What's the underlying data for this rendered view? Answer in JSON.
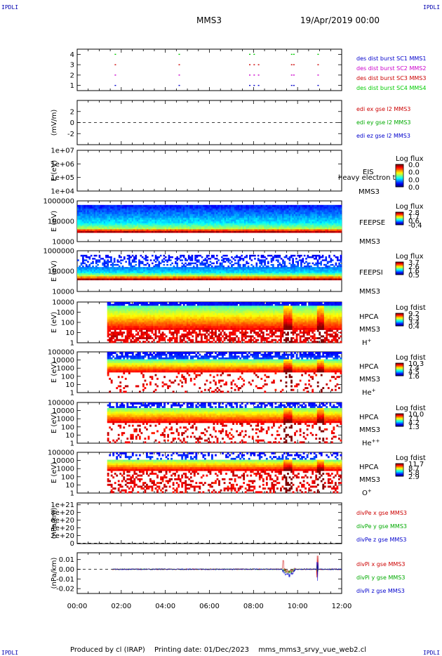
{
  "corner_label": "IPDLI",
  "header": {
    "spacecraft": "MMS3",
    "datetime": "19/Apr/2019 00:00"
  },
  "footer": {
    "produced_by": "Produced by cl (IRAP)",
    "printing_date": "Printing date: 01/Dec/2023",
    "filename": "mms_mms3_srvy_vue_web2.cl"
  },
  "chart_data": [
    {
      "type": "scatter",
      "panel": "burst_availability",
      "ylim": [
        0.5,
        4.5
      ],
      "yticks": [
        "1",
        "2",
        "3",
        "4"
      ],
      "series": [
        {
          "name": "des dist burst SC1 MMS1",
          "color": "#0000cc",
          "y": 1,
          "x_hours": [
            1.7,
            4.6,
            7.8,
            8.0,
            8.2,
            9.7,
            9.8,
            10.9
          ]
        },
        {
          "name": "des dist burst SC2 MMS2",
          "color": "#cc00cc",
          "y": 2,
          "x_hours": [
            1.7,
            4.6,
            7.8,
            8.0,
            8.2,
            9.7,
            9.8,
            10.9
          ]
        },
        {
          "name": "des dist burst SC3 MMS3",
          "color": "#cc0000",
          "y": 3,
          "x_hours": [
            1.7,
            4.6,
            7.8,
            8.0,
            8.2,
            9.7,
            9.8,
            10.9
          ]
        },
        {
          "name": "des dist burst SC4 MMS4",
          "color": "#00cc00",
          "y": 4,
          "x_hours": [
            1.7,
            4.6,
            7.8,
            8.0,
            9.7,
            9.8,
            10.9
          ]
        }
      ]
    },
    {
      "type": "line",
      "panel": "edi_efield",
      "ylabel": "(mV/m)",
      "ylim": [
        -4,
        4
      ],
      "yticks": [
        "-2",
        "0",
        "2"
      ],
      "series": [
        {
          "name": "edi ex gse l2 MMS3",
          "color": "#cc0000"
        },
        {
          "name": "edi ey gse l2 MMS3",
          "color": "#00aa00"
        },
        {
          "name": "edi ez gse l2 MMS3",
          "color": "#0000cc"
        }
      ]
    },
    {
      "type": "heatmap",
      "panel": "eis",
      "ylabel": "E (eV)",
      "yticks": [
        "1e+04",
        "1e+05",
        "1e+06",
        "1e+07"
      ],
      "instrument": "EIS",
      "product": "heavy electron to",
      "spacecraft": "MMS3",
      "colorbar_title": "Log flux",
      "colorbar_ticks": [
        "0.0",
        "0.0",
        "0.0",
        "0.0"
      ]
    },
    {
      "type": "heatmap",
      "panel": "feeps_electron",
      "ylabel": "E (eV)",
      "yticks": [
        "10000",
        "100000",
        "1000000"
      ],
      "instrument": "FEEPSE",
      "spacecraft": "MMS3",
      "colorbar_title": "Log flux",
      "colorbar_ticks": [
        "2.8",
        "1.7",
        "0.6",
        "-0.4"
      ]
    },
    {
      "type": "heatmap",
      "panel": "feeps_ion",
      "ylabel": "E (eV)",
      "yticks": [
        "10000",
        "100000",
        "1000000"
      ],
      "instrument": "FEEPSI",
      "spacecraft": "MMS3",
      "colorbar_title": "Log flux",
      "colorbar_ticks": [
        "3.7",
        "2.6",
        "1.6",
        "0.5"
      ]
    },
    {
      "type": "heatmap",
      "panel": "hpca_h",
      "ylabel": "E (eV)",
      "yticks": [
        "1",
        "10",
        "100",
        "1000",
        "10000"
      ],
      "instrument": "HPCA",
      "spacecraft": "MMS3",
      "species": "H",
      "charge": "+",
      "colorbar_title": "Log fdist",
      "colorbar_ticks": [
        "9.2",
        "6.3",
        "3.4",
        "0.4"
      ]
    },
    {
      "type": "heatmap",
      "panel": "hpca_he1",
      "ylabel": "E (eV)",
      "yticks": [
        "1",
        "10",
        "100",
        "1000",
        "10000",
        "100000"
      ],
      "instrument": "HPCA",
      "spacecraft": "MMS3",
      "species": "He",
      "charge": "+",
      "colorbar_title": "Log fdist",
      "colorbar_ticks": [
        "10.3",
        "7.4",
        "4.5",
        "1.6"
      ]
    },
    {
      "type": "heatmap",
      "panel": "hpca_he2",
      "ylabel": "E (eV)",
      "yticks": [
        "1",
        "10",
        "100",
        "1000",
        "10000",
        "100000"
      ],
      "instrument": "HPCA",
      "spacecraft": "MMS3",
      "species": "He",
      "charge": "++",
      "colorbar_title": "Log fdist",
      "colorbar_ticks": [
        "10.0",
        "7.1",
        "4.2",
        "1.3"
      ]
    },
    {
      "type": "heatmap",
      "panel": "hpca_o",
      "ylabel": "E (eV)",
      "yticks": [
        "1",
        "10",
        "100",
        "1000",
        "10000",
        "100000"
      ],
      "instrument": "HPCA",
      "spacecraft": "MMS3",
      "species": "O",
      "charge": "+",
      "colorbar_title": "Log fdist",
      "colorbar_ticks": [
        "11.7",
        "8.7",
        "5.8",
        "2.9"
      ]
    },
    {
      "type": "line",
      "panel": "divpe",
      "ylabel": "(nPa/km)",
      "ylim": [
        -1e+19,
        1.05e+21
      ],
      "yticks": [
        "0",
        "2e+20",
        "4e+20",
        "6e+20",
        "8e+20",
        "1e+21"
      ],
      "series": [
        {
          "name": "divPe x gse MMS3",
          "color": "#cc0000"
        },
        {
          "name": "divPe y gse MMS3",
          "color": "#00aa00"
        },
        {
          "name": "divPe z gse MMS3",
          "color": "#0000cc"
        }
      ]
    },
    {
      "type": "line",
      "panel": "divpi",
      "ylabel": "(nPa/km)",
      "ylim": [
        -0.025,
        0.017
      ],
      "yticks": [
        "-0.02",
        "-0.01",
        "0.00",
        "0.01"
      ],
      "series": [
        {
          "name": "divPi x gse MMS3",
          "color": "#cc0000"
        },
        {
          "name": "divPi y gse MMS3",
          "color": "#00aa00"
        },
        {
          "name": "divPi z gse MMS3",
          "color": "#0000cc"
        }
      ]
    }
  ],
  "time_axis": {
    "range_hours": [
      0,
      12
    ],
    "ticks": [
      "00:00",
      "02:00",
      "04:00",
      "06:00",
      "08:00",
      "10:00",
      "12:00"
    ]
  },
  "colors": {
    "frame": "#000000",
    "label_blue": "#0000cc",
    "label_red": "#cc0000",
    "label_green": "#00aa00",
    "label_magenta": "#cc00cc"
  }
}
